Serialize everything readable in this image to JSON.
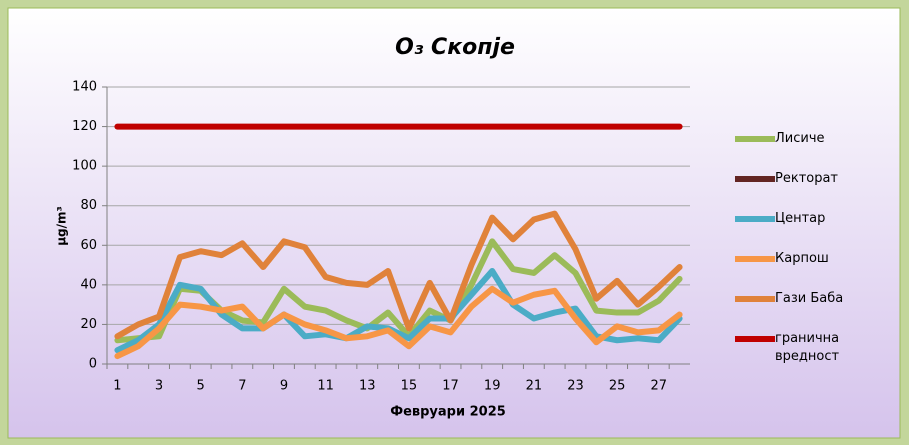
{
  "chart_data": {
    "type": "line",
    "title": "O₃ Скопје",
    "xlabel": "Февруари 2025",
    "ylabel": "µg/m³",
    "categories": [
      "1",
      null,
      "3",
      null,
      "5",
      null,
      "7",
      null,
      "9",
      null,
      "11",
      null,
      "13",
      null,
      "15",
      null,
      "17",
      null,
      "19",
      null,
      "21",
      null,
      "23",
      null,
      "25",
      null,
      "27",
      null
    ],
    "ylim": [
      0,
      140
    ],
    "yticks": [
      0,
      20,
      40,
      60,
      80,
      100,
      120,
      140
    ],
    "grid": true,
    "legend": "right",
    "series": [
      {
        "name": "Лисиче",
        "color": "#9bbb59",
        "values": [
          12,
          13,
          14,
          38,
          37,
          27,
          22,
          21,
          38,
          29,
          27,
          22,
          18,
          26,
          14,
          27,
          22,
          40,
          62,
          48,
          46,
          55,
          46,
          27,
          26,
          26,
          32,
          43
        ]
      },
      {
        "name": "Ректорат",
        "color": "#632523",
        "values": [
          null,
          null,
          null,
          null,
          null,
          null,
          null,
          null,
          null,
          null,
          null,
          null,
          null,
          null,
          null,
          null,
          null,
          null,
          null,
          null,
          null,
          null,
          null,
          null,
          null,
          null,
          null,
          null
        ]
      },
      {
        "name": "Центар",
        "color": "#4bacc6",
        "values": [
          7,
          12,
          20,
          40,
          38,
          25,
          18,
          18,
          25,
          14,
          15,
          13,
          19,
          18,
          13,
          23,
          23,
          35,
          47,
          30,
          23,
          26,
          28,
          14,
          12,
          13,
          12,
          23
        ]
      },
      {
        "name": "Карпош",
        "color": "#f79646",
        "values": [
          4,
          9,
          18,
          30,
          29,
          27,
          29,
          18,
          25,
          20,
          17,
          13,
          14,
          17,
          9,
          19,
          16,
          29,
          38,
          31,
          35,
          37,
          23,
          11,
          19,
          16,
          17,
          25
        ]
      },
      {
        "name": "Гази Баба",
        "color": "#e0823a",
        "values": [
          14,
          20,
          24,
          54,
          57,
          55,
          61,
          49,
          62,
          59,
          44,
          41,
          40,
          47,
          18,
          41,
          22,
          50,
          74,
          63,
          73,
          76,
          58,
          33,
          42,
          30,
          39,
          49
        ]
      },
      {
        "name": "гранична вредност",
        "color": "#c00000",
        "values": [
          120,
          120,
          120,
          120,
          120,
          120,
          120,
          120,
          120,
          120,
          120,
          120,
          120,
          120,
          120,
          120,
          120,
          120,
          120,
          120,
          120,
          120,
          120,
          120,
          120,
          120,
          120,
          120
        ]
      }
    ]
  }
}
